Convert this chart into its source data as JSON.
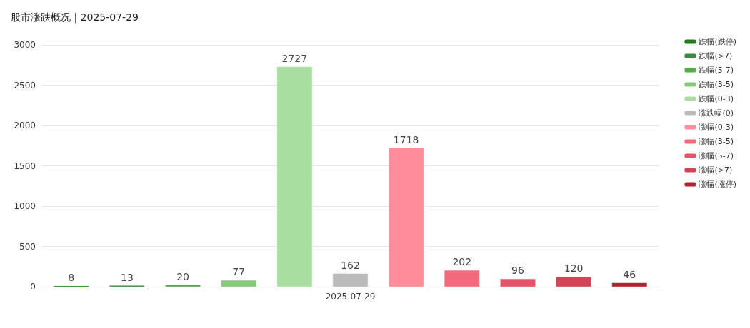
{
  "chart_data": {
    "type": "bar",
    "title": "股市涨跌概况 | 2025-07-29",
    "categories": [
      "2025-07-29"
    ],
    "series": [
      {
        "name": "跌幅(跌停)",
        "color": "#1e7b1e",
        "values": [
          8
        ]
      },
      {
        "name": "跌幅(>7)",
        "color": "#3a8c3a",
        "values": [
          13
        ]
      },
      {
        "name": "跌幅(5-7)",
        "color": "#56a84a",
        "values": [
          20
        ]
      },
      {
        "name": "跌幅(3-5)",
        "color": "#86c97a",
        "values": [
          77
        ]
      },
      {
        "name": "跌幅(0-3)",
        "color": "#a8dfa0",
        "values": [
          2727
        ]
      },
      {
        "name": "涨跌幅(0)",
        "color": "#bbbbbb",
        "values": [
          162
        ]
      },
      {
        "name": "涨幅(0-3)",
        "color": "#ff8c9a",
        "values": [
          1718
        ]
      },
      {
        "name": "涨幅(3-5)",
        "color": "#f26a7c",
        "values": [
          202
        ]
      },
      {
        "name": "涨幅(5-7)",
        "color": "#e35468",
        "values": [
          96
        ]
      },
      {
        "name": "涨幅(>7)",
        "color": "#d34555",
        "values": [
          120
        ]
      },
      {
        "name": "涨幅(涨停)",
        "color": "#b5202f",
        "values": [
          46
        ]
      }
    ],
    "ylim": [
      0,
      3000
    ],
    "yticks": [
      0,
      500,
      1000,
      1500,
      2000,
      2500,
      3000
    ],
    "grid": "y",
    "legend": "right",
    "data_labels": true
  }
}
